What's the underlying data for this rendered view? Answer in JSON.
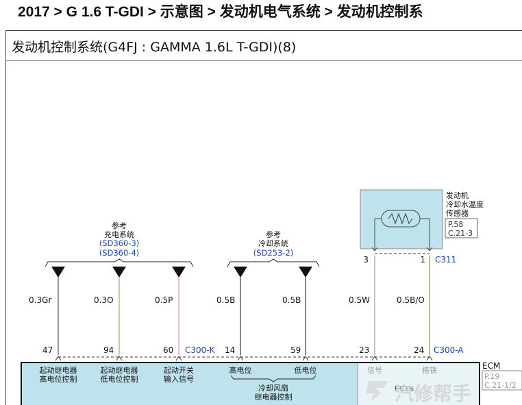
{
  "breadcrumb": "2017 > G 1.6 T-GDI > 示意图 > 发动机电气系统 > 发动机控制系",
  "diagram_title": "发动机控制系统(G4FJ : GAMMA 1.6L T-GDI)(8)",
  "refs": {
    "charging": {
      "ref": "参考",
      "name": "充电系统",
      "link1": "(SD360-3)",
      "link2": "(SD360-4)"
    },
    "cooling": {
      "ref": "参考",
      "name": "冷却系统",
      "link": "(SD253-2)"
    }
  },
  "sensor": {
    "line1": "发动机",
    "line2": "冷却水温度",
    "line3": "传感器",
    "page": "P.58",
    "section": "C.21-3",
    "connector": "C311",
    "pin_left": "3",
    "pin_right": "1"
  },
  "wires": [
    {
      "label": "0.3Gr",
      "pin": "47",
      "color": "#555555"
    },
    {
      "label": "0.3O",
      "pin": "94",
      "color": "#d9a36b"
    },
    {
      "label": "0.5P",
      "pin": "60",
      "color": "#e8a0c8"
    },
    {
      "label": "0.5B",
      "pin": "14",
      "color": "#333333"
    },
    {
      "label": "0.5B",
      "pin": "59",
      "color": "#333333"
    },
    {
      "label": "0.5W",
      "pin": "23",
      "color": "#9a9a9a"
    },
    {
      "label": "0.5B/O",
      "pin": "24",
      "color": "#b8905a"
    }
  ],
  "connectors": {
    "c300k": "C300-K",
    "c300a": "C300-A"
  },
  "ecm": {
    "label": "ECM",
    "page": "P.19",
    "section": "C.21-1/2",
    "box": "ECTS",
    "functions": {
      "f1a": "起动继电器",
      "f1b": "高电位控制",
      "f2a": "起动继电器",
      "f2b": "低电位控制",
      "f3a": "起动开关",
      "f3b": "输入信号",
      "f4": "高电位",
      "f5": "低电位",
      "f6a": "冷却风扇",
      "f6b": "继电器控制",
      "f7": "信号",
      "f8": "搭铁"
    }
  },
  "watermark": "汽修帮手",
  "colors": {
    "sensor_fill": "#bfe3ec",
    "ecm_fill": "#bfe3ec",
    "link": "#1a3fcc"
  }
}
